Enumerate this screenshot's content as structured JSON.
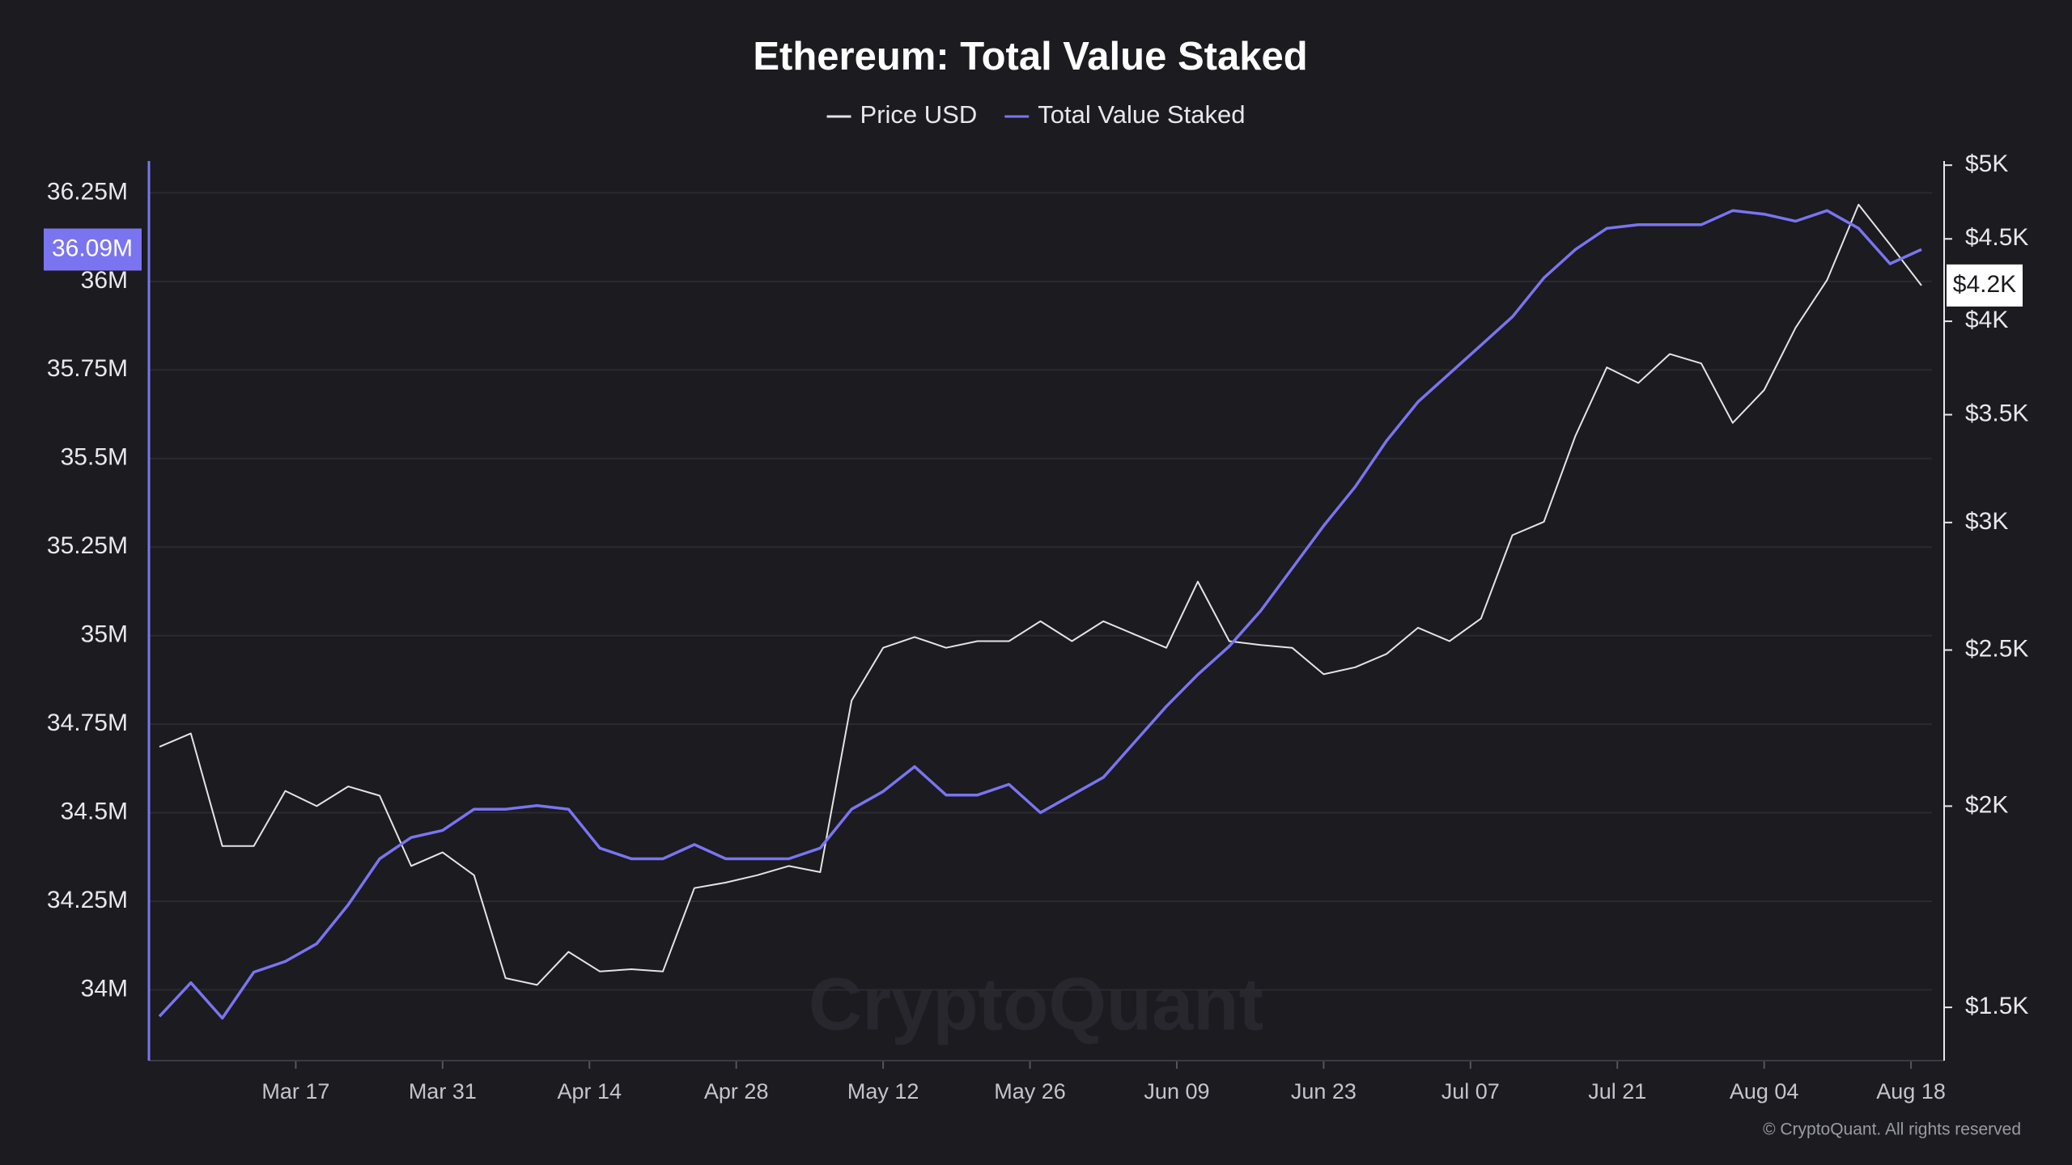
{
  "chart_data": {
    "type": "line",
    "title": "Ethereum: Total Value Staked",
    "watermark": "CryptoQuant",
    "source": "© CryptoQuant. All rights reserved",
    "x": [
      "Mar 04",
      "Mar 07",
      "Mar 10",
      "Mar 13",
      "Mar 16",
      "Mar 19",
      "Mar 22",
      "Mar 25",
      "Mar 28",
      "Mar 31",
      "Apr 03",
      "Apr 06",
      "Apr 09",
      "Apr 12",
      "Apr 15",
      "Apr 18",
      "Apr 21",
      "Apr 24",
      "Apr 27",
      "Apr 30",
      "May 03",
      "May 06",
      "May 09",
      "May 12",
      "May 15",
      "May 18",
      "May 21",
      "May 24",
      "May 27",
      "May 30",
      "Jun 02",
      "Jun 05",
      "Jun 08",
      "Jun 11",
      "Jun 14",
      "Jun 17",
      "Jun 20",
      "Jun 23",
      "Jun 26",
      "Jun 29",
      "Jul 02",
      "Jul 05",
      "Jul 08",
      "Jul 11",
      "Jul 14",
      "Jul 17",
      "Jul 20",
      "Jul 23",
      "Jul 26",
      "Jul 29",
      "Aug 01",
      "Aug 04",
      "Aug 07",
      "Aug 10",
      "Aug 13",
      "Aug 16",
      "Aug 19"
    ],
    "xlim": [
      "Mar 03",
      "Aug 20"
    ],
    "xticks": [
      "Mar 17",
      "Mar 31",
      "Apr 14",
      "Apr 28",
      "May 12",
      "May 26",
      "Jun 09",
      "Jun 23",
      "Jul 07",
      "Jul 21",
      "Aug 04",
      "Aug 18"
    ],
    "ylim": [
      33800000,
      36340000
    ],
    "yticks": [
      {
        "value": 34000000,
        "label": "34M"
      },
      {
        "value": 34250000,
        "label": "34.25M"
      },
      {
        "value": 34500000,
        "label": "34.5M"
      },
      {
        "value": 34750000,
        "label": "34.75M"
      },
      {
        "value": 35000000,
        "label": "35M"
      },
      {
        "value": 35250000,
        "label": "35.25M"
      },
      {
        "value": 35500000,
        "label": "35.5M"
      },
      {
        "value": 35750000,
        "label": "35.75M"
      },
      {
        "value": 36000000,
        "label": "36M"
      },
      {
        "value": 36250000,
        "label": "36.25M"
      }
    ],
    "y2lim": [
      1390,
      5030
    ],
    "y2log": true,
    "y2ticks": [
      {
        "value": 1500,
        "label": "$1.5K"
      },
      {
        "value": 2000,
        "label": "$2K"
      },
      {
        "value": 2500,
        "label": "$2.5K"
      },
      {
        "value": 3000,
        "label": "$3K"
      },
      {
        "value": 3500,
        "label": "$3.5K"
      },
      {
        "value": 4000,
        "label": "$4K"
      },
      {
        "value": 4500,
        "label": "$4.5K"
      },
      {
        "value": 5000,
        "label": "$5K"
      }
    ],
    "grid": true,
    "series": [
      {
        "name": "Price USD",
        "color": "#e4e4e7",
        "axis": "y2",
        "last_label": {
          "value": 4210,
          "label": "$4.2K"
        },
        "values": [
          2177,
          2219,
          1889,
          1889,
          2044,
          2000,
          2057,
          2030,
          1836,
          1872,
          1812,
          1564,
          1549,
          1624,
          1579,
          1584,
          1579,
          1779,
          1793,
          1812,
          1836,
          1820,
          2326,
          2508,
          2547,
          2508,
          2532,
          2532,
          2605,
          2532,
          2605,
          2556,
          2508,
          2757,
          2532,
          2518,
          2508,
          2415,
          2439,
          2486,
          2581,
          2532,
          2615,
          2946,
          3003,
          3395,
          3745,
          3662,
          3817,
          3766,
          3459,
          3626,
          3963,
          4243,
          4726,
          4464,
          4210
        ]
      },
      {
        "name": "Total Value Staked",
        "color": "#7b74f0",
        "axis": "y",
        "last_label": {
          "value": 36090000,
          "label": "36.09M"
        },
        "values": [
          33925000,
          34020000,
          33920000,
          34050000,
          34080000,
          34130000,
          34240000,
          34370000,
          34430000,
          34450000,
          34510000,
          34510000,
          34520000,
          34510000,
          34400000,
          34370000,
          34370000,
          34410000,
          34370000,
          34370000,
          34370000,
          34400000,
          34510000,
          34560000,
          34630000,
          34550000,
          34550000,
          34580000,
          34500000,
          34550000,
          34600000,
          34700000,
          34800000,
          34890000,
          34970000,
          35070000,
          35190000,
          35310000,
          35420000,
          35550000,
          35660000,
          35740000,
          35820000,
          35900000,
          36010000,
          36090000,
          36150000,
          36160000,
          36160000,
          36160000,
          36200000,
          36190000,
          36170000,
          36200000,
          36150000,
          36050000,
          36090000
        ]
      }
    ]
  }
}
